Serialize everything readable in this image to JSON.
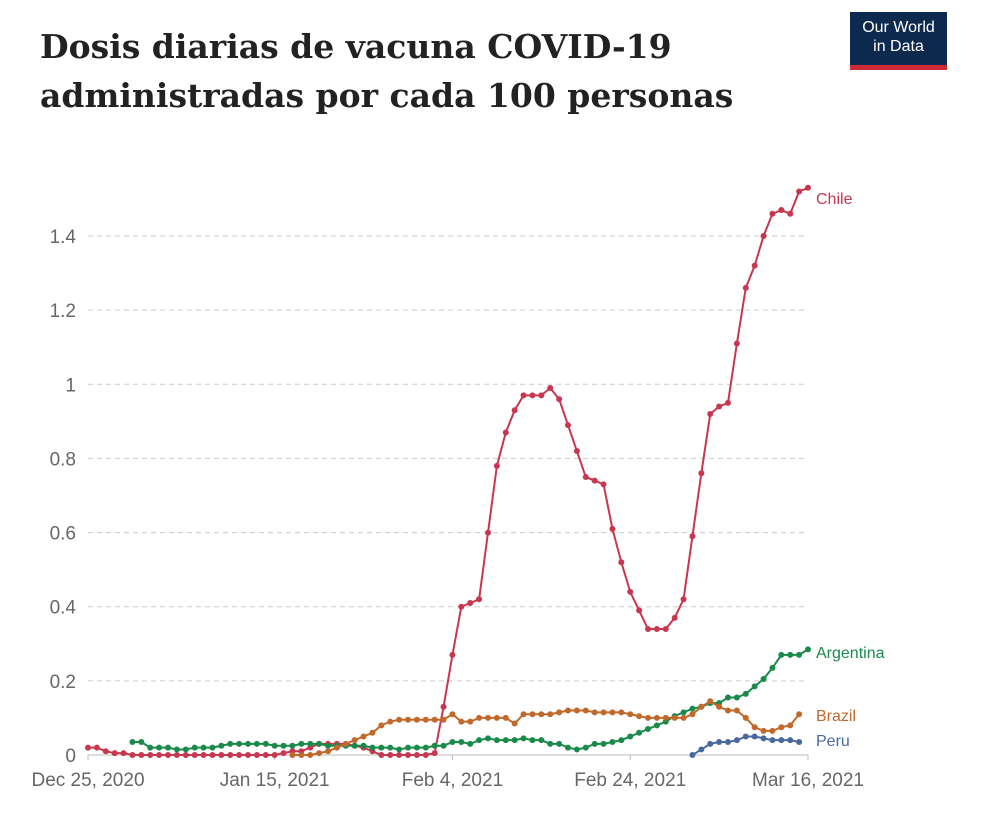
{
  "title": "Dosis diarias de vacuna COVID-19 administradas por cada 100 personas",
  "logo": {
    "line1": "Our World",
    "line2": "in Data"
  },
  "chart_data": {
    "type": "line",
    "title": "Dosis diarias de vacuna COVID-19 administradas por cada 100 personas",
    "xlabel": "",
    "ylabel": "",
    "x_start": "Dec 25, 2020",
    "x_unit": "days since Dec 25, 2020",
    "xlim": [
      0,
      81
    ],
    "ylim": [
      0,
      1.55
    ],
    "xticks": [
      {
        "day": 0,
        "label": "Dec 25, 2020"
      },
      {
        "day": 21,
        "label": "Jan 15, 2021"
      },
      {
        "day": 41,
        "label": "Feb 4, 2021"
      },
      {
        "day": 61,
        "label": "Feb 24, 2021"
      },
      {
        "day": 81,
        "label": "Mar 16, 2021"
      }
    ],
    "yticks": [
      {
        "v": 0,
        "label": "0"
      },
      {
        "v": 0.2,
        "label": "0.2"
      },
      {
        "v": 0.4,
        "label": "0.4"
      },
      {
        "v": 0.6,
        "label": "0.6"
      },
      {
        "v": 0.8,
        "label": "0.8"
      },
      {
        "v": 1,
        "label": "1"
      },
      {
        "v": 1.2,
        "label": "1.2"
      },
      {
        "v": 1.4,
        "label": "1.4"
      }
    ],
    "grid": true,
    "series": [
      {
        "name": "Chile",
        "color": "#c8374f",
        "start": 0,
        "values": [
          0.02,
          0.02,
          0.01,
          0.005,
          0.005,
          0,
          0,
          0,
          0,
          0,
          0,
          0,
          0,
          0,
          0,
          0,
          0,
          0,
          0,
          0,
          0,
          0,
          0.005,
          0.01,
          0.01,
          0.02,
          0.03,
          0.03,
          0.03,
          0.03,
          0.025,
          0.02,
          0.01,
          0,
          0,
          0,
          0,
          0,
          0,
          0.005,
          0.13,
          0.27,
          0.4,
          0.41,
          0.42,
          0.6,
          0.78,
          0.87,
          0.93,
          0.97,
          0.97,
          0.97,
          0.99,
          0.96,
          0.89,
          0.82,
          0.75,
          0.74,
          0.73,
          0.61,
          0.52,
          0.44,
          0.39,
          0.34,
          0.34,
          0.34,
          0.37,
          0.42,
          0.59,
          0.76,
          0.92,
          0.94,
          0.95,
          1.11,
          1.26,
          1.32,
          1.4,
          1.46,
          1.47,
          1.46,
          1.52,
          1.53
        ]
      },
      {
        "name": "Argentina",
        "color": "#1a8a4a",
        "start": 5,
        "values": [
          0.035,
          0.035,
          0.02,
          0.02,
          0.02,
          0.015,
          0.015,
          0.02,
          0.02,
          0.02,
          0.025,
          0.03,
          0.03,
          0.03,
          0.03,
          0.03,
          0.025,
          0.025,
          0.025,
          0.03,
          0.03,
          0.03,
          0.025,
          0.025,
          0.025,
          0.025,
          0.025,
          0.02,
          0.02,
          0.02,
          0.015,
          0.02,
          0.02,
          0.02,
          0.025,
          0.025,
          0.035,
          0.035,
          0.03,
          0.04,
          0.045,
          0.04,
          0.04,
          0.04,
          0.045,
          0.04,
          0.04,
          0.03,
          0.03,
          0.02,
          0.015,
          0.02,
          0.03,
          0.03,
          0.035,
          0.04,
          0.05,
          0.06,
          0.07,
          0.08,
          0.09,
          0.105,
          0.115,
          0.125,
          0.13,
          0.14,
          0.14,
          0.155,
          0.155,
          0.165,
          0.185,
          0.205,
          0.235,
          0.27,
          0.27,
          0.27,
          0.285
        ]
      },
      {
        "name": "Brazil",
        "color": "#c0692a",
        "start": 23,
        "values": [
          0,
          0,
          0,
          0.005,
          0.01,
          0.02,
          0.03,
          0.04,
          0.05,
          0.06,
          0.08,
          0.09,
          0.095,
          0.095,
          0.095,
          0.095,
          0.095,
          0.095,
          0.11,
          0.09,
          0.09,
          0.1,
          0.1,
          0.1,
          0.1,
          0.085,
          0.11,
          0.11,
          0.11,
          0.11,
          0.115,
          0.12,
          0.12,
          0.12,
          0.115,
          0.115,
          0.115,
          0.115,
          0.11,
          0.105,
          0.1,
          0.1,
          0.1,
          0.1,
          0.1,
          0.11,
          0.13,
          0.145,
          0.13,
          0.12,
          0.12,
          0.1,
          0.075,
          0.065,
          0.065,
          0.075,
          0.08,
          0.11
        ]
      },
      {
        "name": "Peru",
        "color": "#4a68a0",
        "start": 68,
        "values": [
          0,
          0.015,
          0.03,
          0.035,
          0.035,
          0.04,
          0.05,
          0.05,
          0.045,
          0.04,
          0.04,
          0.04,
          0.035
        ]
      }
    ]
  }
}
